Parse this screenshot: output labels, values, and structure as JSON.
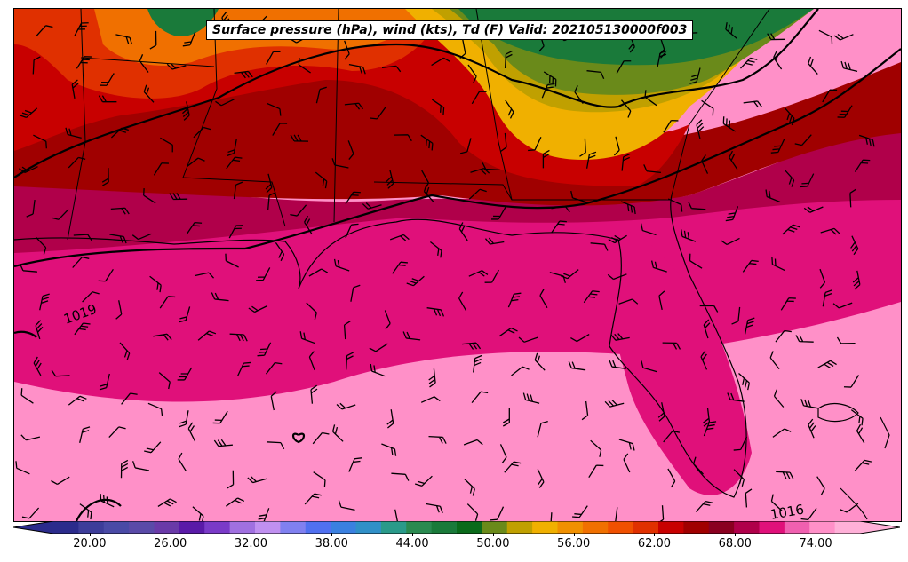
{
  "title": "Surface pressure (hPa), wind (kts), Td (F) Valid: 202105130000f003",
  "isobar_labels": [
    "1019",
    "1016"
  ],
  "colorbar": {
    "ticks": [
      "20.00",
      "26.00",
      "32.00",
      "38.00",
      "44.00",
      "50.00",
      "56.00",
      "62.00",
      "68.00",
      "74.00"
    ],
    "tick_values": [
      20,
      26,
      32,
      38,
      44,
      50,
      56,
      62,
      68,
      74
    ],
    "min": 17.3,
    "max": 77.3,
    "colors": [
      "#2b2b8c",
      "#3d3d9a",
      "#4a4aa6",
      "#5a4aa8",
      "#6a3aa8",
      "#5a1aa8",
      "#7a3ac8",
      "#a070e0",
      "#c090f0",
      "#8080f0",
      "#5070f0",
      "#3a80e0",
      "#3090c8",
      "#2a9a8a",
      "#2a8a50",
      "#1a7a3a",
      "#0a6a1a",
      "#6a8a1a",
      "#c0a000",
      "#f0b000",
      "#f09000",
      "#f07000",
      "#f05000",
      "#e03000",
      "#c80000",
      "#a00000",
      "#8a0020",
      "#b0004a",
      "#e0107a",
      "#f060b0",
      "#ff90c8",
      "#ffb0d8"
    ]
  },
  "chart_data": {
    "type": "heatmap",
    "title": "Surface pressure (hPa), wind (kts), Td (F) Valid: 202105130000f003",
    "colorbar_range": [
      17.3,
      77.3
    ],
    "colorbar_ticks": [
      20,
      26,
      32,
      38,
      44,
      50,
      56,
      62,
      68,
      74
    ],
    "contour_labels": [
      1019,
      1016
    ]
  }
}
